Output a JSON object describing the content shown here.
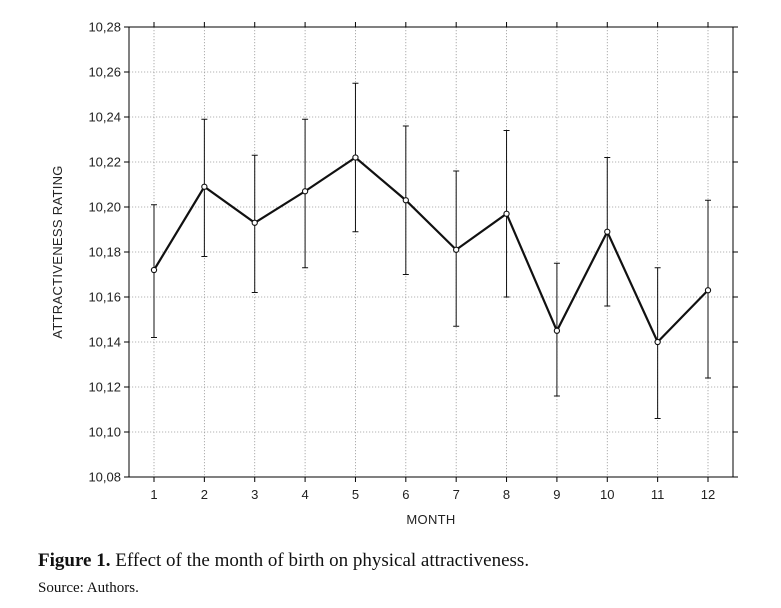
{
  "chart_data": {
    "type": "line",
    "xlabel": "MONTH",
    "ylabel": "ATTRACTIVENESS RATING",
    "ylim": [
      10.08,
      10.28
    ],
    "yticks": [
      "10,08",
      "10,10",
      "10,12",
      "10,14",
      "10,16",
      "10,18",
      "10,20",
      "10,22",
      "10,24",
      "10,26",
      "10,28"
    ],
    "ytick_values": [
      10.08,
      10.1,
      10.12,
      10.14,
      10.16,
      10.18,
      10.2,
      10.22,
      10.24,
      10.26,
      10.28
    ],
    "categories": [
      "1",
      "2",
      "3",
      "4",
      "5",
      "6",
      "7",
      "8",
      "9",
      "10",
      "11",
      "12"
    ],
    "series": [
      {
        "values": [
          10.172,
          10.209,
          10.193,
          10.207,
          10.222,
          10.203,
          10.181,
          10.197,
          10.145,
          10.189,
          10.14,
          10.163
        ],
        "lower": [
          10.142,
          10.178,
          10.162,
          10.173,
          10.189,
          10.17,
          10.147,
          10.16,
          10.116,
          10.156,
          10.106,
          10.124
        ],
        "upper": [
          10.201,
          10.239,
          10.223,
          10.239,
          10.255,
          10.236,
          10.216,
          10.234,
          10.175,
          10.222,
          10.173,
          10.203
        ]
      }
    ],
    "grid": true,
    "grid_style": "dotted",
    "legend": "none",
    "line_color": "#111111"
  },
  "caption": {
    "label": "Figure 1.",
    "text": " Effect of the month of birth on physical attractiveness."
  },
  "source": "Source: Authors."
}
